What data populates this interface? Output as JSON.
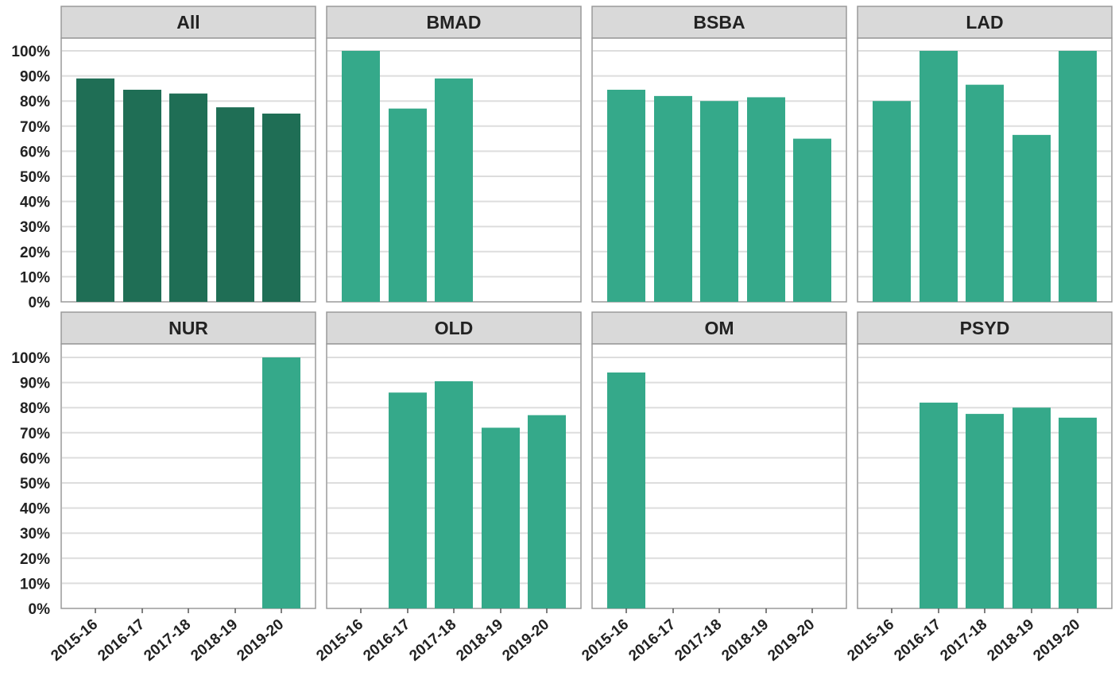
{
  "chart_data": {
    "type": "bar",
    "layout": "faceted small multiples (2 rows x 4 columns)",
    "categories": [
      "2015-16",
      "2016-17",
      "2017-18",
      "2018-19",
      "2019-20"
    ],
    "ylim": [
      0,
      1
    ],
    "yticks": [
      "0%",
      "10%",
      "20%",
      "30%",
      "40%",
      "50%",
      "60%",
      "70%",
      "80%",
      "90%",
      "100%"
    ],
    "grid": true,
    "legend": "none",
    "colors": {
      "all_bar": "#1f6e55",
      "program_bar": "#35a98a",
      "facet_header": "#d9d9d9",
      "gridline": "#dddddd",
      "border": "#9a9a9a"
    },
    "facets": [
      {
        "name": "All",
        "values": [
          0.89,
          0.845,
          0.83,
          0.775,
          0.75
        ]
      },
      {
        "name": "BMAD",
        "values": [
          1.0,
          0.77,
          0.89,
          null,
          null
        ]
      },
      {
        "name": "BSBA",
        "values": [
          0.845,
          0.82,
          0.8,
          0.815,
          0.65
        ]
      },
      {
        "name": "LAD",
        "values": [
          0.8,
          1.0,
          0.865,
          0.665,
          1.0
        ]
      },
      {
        "name": "NUR",
        "values": [
          null,
          null,
          null,
          null,
          1.0
        ]
      },
      {
        "name": "OLD",
        "values": [
          null,
          0.86,
          0.905,
          0.72,
          0.77
        ]
      },
      {
        "name": "OM",
        "values": [
          0.94,
          null,
          null,
          null,
          null
        ]
      },
      {
        "name": "PSYD",
        "values": [
          null,
          0.82,
          0.775,
          0.8,
          0.76
        ]
      }
    ]
  }
}
